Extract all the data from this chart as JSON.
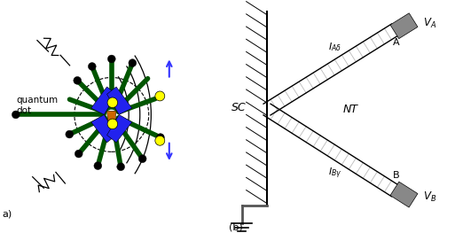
{
  "fig_width": 5.13,
  "fig_height": 2.63,
  "dpi": 100,
  "bg_color": "#ffffff",
  "label_a": "a)",
  "label_b": "(b)",
  "sc_label": "SC",
  "nt_label": "NT",
  "quantum_dot_label": "quantum\ndot",
  "green_color": "#005500",
  "yellow_color": "#ffff00",
  "gray_box": "#888888",
  "black": "#000000",
  "blue_arrow": "#3333ff",
  "blue_fill": "#2222ee"
}
